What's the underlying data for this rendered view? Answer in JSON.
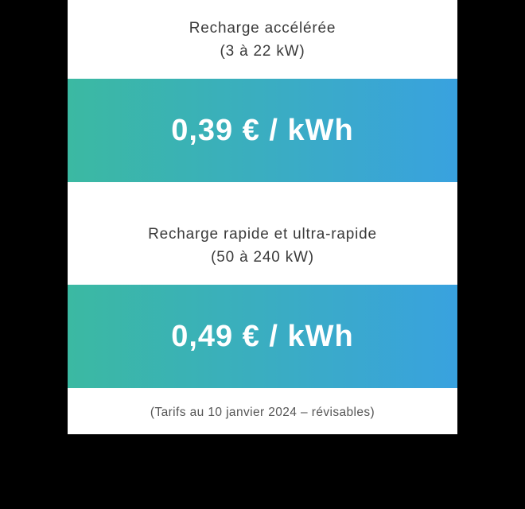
{
  "card": {
    "background_color": "#ffffff",
    "text_color": "#3a3a3a",
    "footer_color": "#555555",
    "price_text_color": "#ffffff",
    "gradient_start": "#3bb9a2",
    "gradient_end": "#39a2df"
  },
  "tier1": {
    "title": "Recharge accélérée",
    "range": "(3 à 22 kW)",
    "price": "0,39 € / kWh"
  },
  "tier2": {
    "title": "Recharge rapide et ultra-rapide",
    "range": "(50 à 240 kW)",
    "price": "0,49 € / kWh"
  },
  "footer": "(Tarifs au 10 janvier 2024 – révisables)"
}
